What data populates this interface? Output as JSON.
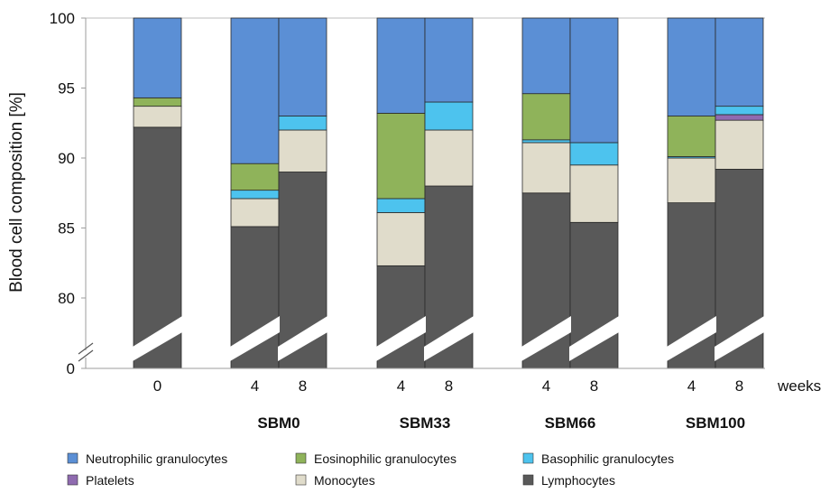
{
  "chart_data": {
    "type": "bar",
    "stacked": true,
    "ylabel": "Blood cell composition [%]",
    "xlabel": "weeks",
    "ylim": [
      0,
      100
    ],
    "y_axis_break": [
      0,
      80
    ],
    "yticks": [
      "0",
      "80",
      "85",
      "90",
      "95",
      "100"
    ],
    "groups": [
      "",
      "SBM0",
      "SBM33",
      "SBM66",
      "SBM100"
    ],
    "categories": [
      {
        "week": "0",
        "group": ""
      },
      {
        "week": "4",
        "group": "SBM0"
      },
      {
        "week": "8",
        "group": "SBM0"
      },
      {
        "week": "4",
        "group": "SBM33"
      },
      {
        "week": "8",
        "group": "SBM33"
      },
      {
        "week": "4",
        "group": "SBM66"
      },
      {
        "week": "8",
        "group": "SBM66"
      },
      {
        "week": "4",
        "group": "SBM100"
      },
      {
        "week": "8",
        "group": "SBM100"
      }
    ],
    "series": [
      {
        "name": "Lymphocytes",
        "color": "#595959",
        "values": [
          92.2,
          85.1,
          89.0,
          82.3,
          88.0,
          87.5,
          85.4,
          86.8,
          89.2
        ]
      },
      {
        "name": "Monocytes",
        "color": "#e0dccb",
        "values": [
          1.5,
          2.0,
          3.0,
          3.8,
          4.0,
          3.6,
          4.1,
          3.2,
          3.5
        ]
      },
      {
        "name": "Platelets",
        "color": "#8f6bb0",
        "values": [
          0.0,
          0.0,
          0.0,
          0.0,
          0.0,
          0.0,
          0.0,
          0.0,
          0.4
        ]
      },
      {
        "name": "Basophilic granulocytes",
        "color": "#4dc3ee",
        "values": [
          0.0,
          0.6,
          1.0,
          1.0,
          2.0,
          0.2,
          1.6,
          0.1,
          0.6
        ]
      },
      {
        "name": "Eosinophilic granulocytes",
        "color": "#8fb35a",
        "values": [
          0.6,
          1.9,
          0.0,
          6.1,
          0.0,
          3.3,
          0.0,
          2.9,
          0.0
        ]
      },
      {
        "name": "Neutrophilic granulocytes",
        "color": "#5b8fd5",
        "values": [
          5.7,
          10.4,
          7.0,
          6.8,
          6.0,
          5.4,
          8.9,
          7.0,
          6.3
        ]
      }
    ],
    "legend": {
      "placement": "bottom",
      "entries": [
        "Neutrophilic granulocytes",
        "Eosinophilic granulocytes",
        "Basophilic granulocytes",
        "Platelets",
        "Monocytes",
        "Lymphocytes"
      ]
    }
  }
}
